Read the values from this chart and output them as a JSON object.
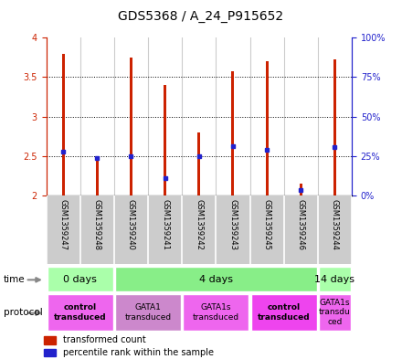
{
  "title": "GDS5368 / A_24_P915652",
  "samples": [
    "GSM1359247",
    "GSM1359248",
    "GSM1359240",
    "GSM1359241",
    "GSM1359242",
    "GSM1359243",
    "GSM1359245",
    "GSM1359246",
    "GSM1359244"
  ],
  "bar_bottom": 2.0,
  "bar_tops": [
    3.8,
    2.5,
    3.75,
    3.4,
    2.8,
    3.58,
    3.7,
    2.15,
    3.72
  ],
  "percentile_values": [
    2.56,
    2.48,
    2.5,
    2.22,
    2.5,
    2.63,
    2.58,
    2.07,
    2.62
  ],
  "ylim": [
    2.0,
    4.0
  ],
  "y2lim": [
    0,
    100
  ],
  "yticks": [
    2.0,
    2.5,
    3.0,
    3.5,
    4.0
  ],
  "ytick_labels": [
    "2",
    "2.5",
    "3",
    "3.5",
    "4"
  ],
  "y2ticks": [
    0,
    25,
    50,
    75,
    100
  ],
  "y2ticklabels": [
    "0%",
    "25%",
    "50%",
    "75%",
    "100%"
  ],
  "bar_color": "#cc2200",
  "percentile_color": "#2222cc",
  "grid_color": "#000000",
  "background_color": "#ffffff",
  "plot_bg_color": "#ffffff",
  "time_groups": [
    {
      "label": "0 days",
      "start": 0,
      "end": 2,
      "color": "#aaffaa"
    },
    {
      "label": "4 days",
      "start": 2,
      "end": 8,
      "color": "#88ee88"
    },
    {
      "label": "14 days",
      "start": 8,
      "end": 9,
      "color": "#aaffaa"
    }
  ],
  "protocol_groups": [
    {
      "label": "control\ntransduced",
      "start": 0,
      "end": 2,
      "color": "#ee66ee",
      "bold": true
    },
    {
      "label": "GATA1\ntransduced",
      "start": 2,
      "end": 4,
      "color": "#cc88cc",
      "bold": false
    },
    {
      "label": "GATA1s\ntransduced",
      "start": 4,
      "end": 6,
      "color": "#ee66ee",
      "bold": false
    },
    {
      "label": "control\ntransduced",
      "start": 6,
      "end": 8,
      "color": "#ee44ee",
      "bold": true
    },
    {
      "label": "GATA1s\ntransdu\nced",
      "start": 8,
      "end": 9,
      "color": "#ee66ee",
      "bold": false
    }
  ],
  "sample_bg_color": "#cccccc",
  "left_label_color": "#cc2200",
  "right_label_color": "#2222cc",
  "title_fontsize": 10,
  "tick_fontsize": 7,
  "sample_label_fontsize": 6,
  "legend_fontsize": 7,
  "time_fontsize": 8,
  "protocol_fontsize": 6.5,
  "arrow_color": "#888888"
}
